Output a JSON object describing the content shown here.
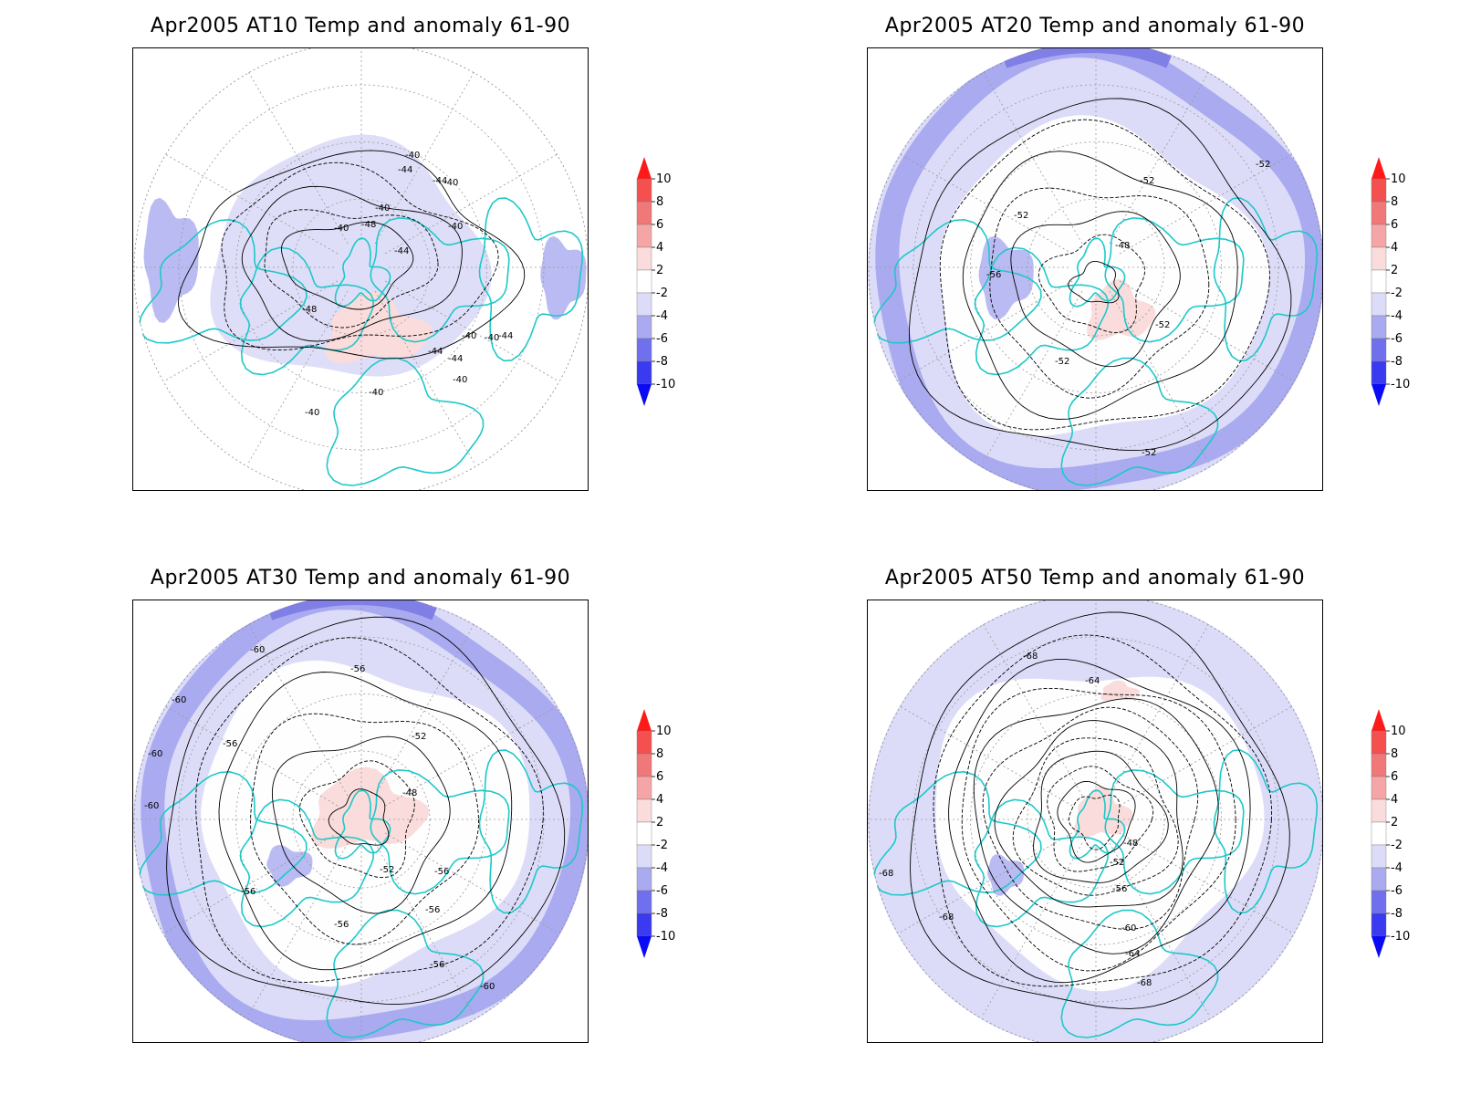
{
  "panels": [
    {
      "title": "Apr2005 AT10 Temp and anomaly 61-90",
      "contour_labels": [
        "-40",
        "-40",
        "-40",
        "-40",
        "-40",
        "-40",
        "-40",
        "-40",
        "-40",
        "-40",
        "-44",
        "-44",
        "-44",
        "-44",
        "-44",
        "-44",
        "-48",
        "-48"
      ],
      "colors": {
        "bg": "#ffffff",
        "weak": "#dcdcf8",
        "mid": "#aaaaf0",
        "strong": "#7f7fe6"
      }
    },
    {
      "title": "Apr2005 AT20 Temp and anomaly 61-90",
      "contour_labels": [
        "-52",
        "-52",
        "-52",
        "-52",
        "-52",
        "-52",
        "-56",
        "-48"
      ],
      "colors": {
        "bg": "#dcdcf8",
        "weak": "#ffffff",
        "mid": "#aaaaf0",
        "strong": "#7f7fe6"
      }
    },
    {
      "title": "Apr2005 AT30 Temp and anomaly 61-90",
      "contour_labels": [
        "-60",
        "-60",
        "-60",
        "-60",
        "-60",
        "-56",
        "-56",
        "-56",
        "-56",
        "-56",
        "-56",
        "-56",
        "-52",
        "-52",
        "-48"
      ],
      "colors": {
        "bg": "#dcdcf8",
        "weak": "#ffffff",
        "mid": "#aaaaf0",
        "strong": "#7f7fe6"
      }
    },
    {
      "title": "Apr2005 AT50 Temp and anomaly 61-90",
      "contour_labels": [
        "-68",
        "-68",
        "-68",
        "-68",
        "-64",
        "-64",
        "-60",
        "-56",
        "-52",
        "-48"
      ],
      "colors": {
        "bg": "#dcdcf8",
        "weak": "#ffffff",
        "mid": "#aaaaf0",
        "strong": "#7f7fe6"
      }
    }
  ],
  "colorbar": {
    "labels": [
      "10",
      "8",
      "6",
      "4",
      "2",
      "-2",
      "-4",
      "-6",
      "-8",
      "-10"
    ],
    "colors": [
      "#ff1a1a",
      "#f55050",
      "#f07878",
      "#f5a5a5",
      "#fadcdc",
      "#ffffff",
      "#dcdcf8",
      "#aaaaf0",
      "#7070ee",
      "#3a3af0",
      "#0a0af5"
    ]
  },
  "coast_color": "#1ec8c8",
  "warm_color": "#fadcdc"
}
